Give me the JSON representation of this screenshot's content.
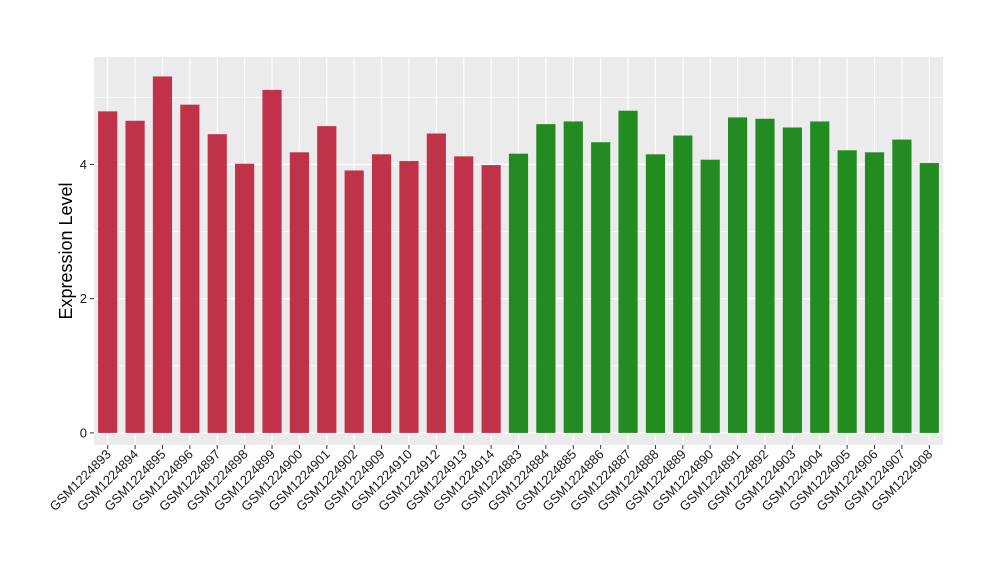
{
  "chart_data": {
    "type": "bar",
    "ylabel": "Expression Level",
    "xlabel": "",
    "ylim": [
      -0.18,
      5.6
    ],
    "yticks": [
      0,
      2,
      4
    ],
    "grid": true,
    "colors": {
      "group1": "#C0314A",
      "group2": "#228B22",
      "panel": "#EBEBEB",
      "gridline": "#FFFFFF"
    },
    "categories": [
      "GSM1224893",
      "GSM1224894",
      "GSM1224895",
      "GSM1224896",
      "GSM1224897",
      "GSM1224898",
      "GSM1224899",
      "GSM1224900",
      "GSM1224901",
      "GSM1224902",
      "GSM1224909",
      "GSM1224910",
      "GSM1224912",
      "GSM1224913",
      "GSM1224914",
      "GSM1224883",
      "GSM1224884",
      "GSM1224885",
      "GSM1224886",
      "GSM1224887",
      "GSM1224888",
      "GSM1224889",
      "GSM1224890",
      "GSM1224891",
      "GSM1224892",
      "GSM1224903",
      "GSM1224904",
      "GSM1224905",
      "GSM1224906",
      "GSM1224907",
      "GSM1224908"
    ],
    "values": [
      4.79,
      4.65,
      5.31,
      4.89,
      4.45,
      4.01,
      5.11,
      4.18,
      4.57,
      3.91,
      4.15,
      4.05,
      4.46,
      4.12,
      3.99,
      4.16,
      4.6,
      4.64,
      4.33,
      4.8,
      4.15,
      4.43,
      4.07,
      4.7,
      4.68,
      4.55,
      4.64,
      4.21,
      4.18,
      4.37,
      4.02
    ],
    "groups": [
      1,
      1,
      1,
      1,
      1,
      1,
      1,
      1,
      1,
      1,
      1,
      1,
      1,
      1,
      1,
      2,
      2,
      2,
      2,
      2,
      2,
      2,
      2,
      2,
      2,
      2,
      2,
      2,
      2,
      2,
      2
    ]
  }
}
